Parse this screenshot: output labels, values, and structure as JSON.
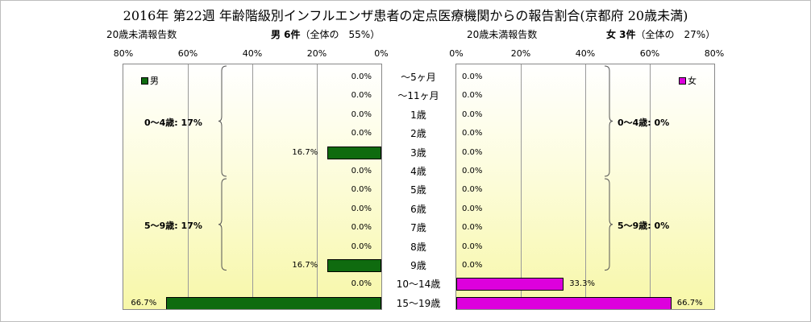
{
  "chart_data": {
    "type": "bar",
    "title": "2016年 第22週 年齢階級別インフルエンザ患者の定点医療機関からの報告割合(京都府 20歳未満)",
    "categories": [
      "～5ヶ月",
      "～11ヶ月",
      "1歳",
      "2歳",
      "3歳",
      "4歳",
      "5歳",
      "6歳",
      "7歳",
      "8歳",
      "9歳",
      "10～14歳",
      "15～19歳"
    ],
    "xlim": [
      0,
      80
    ],
    "ticks": [
      "80%",
      "60%",
      "40%",
      "20%",
      "0%"
    ],
    "ticks_right": [
      "0%",
      "20%",
      "40%",
      "60%",
      "80%"
    ],
    "grid": true,
    "series": [
      {
        "name": "男",
        "header_label": "20歳未満報告数",
        "header_title": "男 6件",
        "header_share": "（全体の　55%）",
        "color": "#0f6b0f",
        "values": [
          0.0,
          0.0,
          0.0,
          0.0,
          16.7,
          0.0,
          0.0,
          0.0,
          0.0,
          0.0,
          16.7,
          0.0,
          66.7
        ],
        "labels": [
          "0.0%",
          "0.0%",
          "0.0%",
          "0.0%",
          "16.7%",
          "0.0%",
          "0.0%",
          "0.0%",
          "0.0%",
          "0.0%",
          "16.7%",
          "0.0%",
          "66.7%"
        ],
        "groups": [
          {
            "text": "0～4歳: 17%",
            "from": 0,
            "to": 5
          },
          {
            "text": "5～9歳: 17%",
            "from": 6,
            "to": 10
          }
        ]
      },
      {
        "name": "女",
        "header_label": "20歳未満報告数",
        "header_title": "女 3件",
        "header_share": "（全体の　27%）",
        "color": "#dd00dd",
        "values": [
          0.0,
          0.0,
          0.0,
          0.0,
          0.0,
          0.0,
          0.0,
          0.0,
          0.0,
          0.0,
          0.0,
          33.3,
          66.7
        ],
        "labels": [
          "0.0%",
          "0.0%",
          "0.0%",
          "0.0%",
          "0.0%",
          "0.0%",
          "0.0%",
          "0.0%",
          "0.0%",
          "0.0%",
          "0.0%",
          "33.3%",
          "66.7%"
        ],
        "groups": [
          {
            "text": "0～4歳: 0%",
            "from": 0,
            "to": 5
          },
          {
            "text": "5～9歳: 0%",
            "from": 6,
            "to": 10
          }
        ]
      }
    ]
  }
}
